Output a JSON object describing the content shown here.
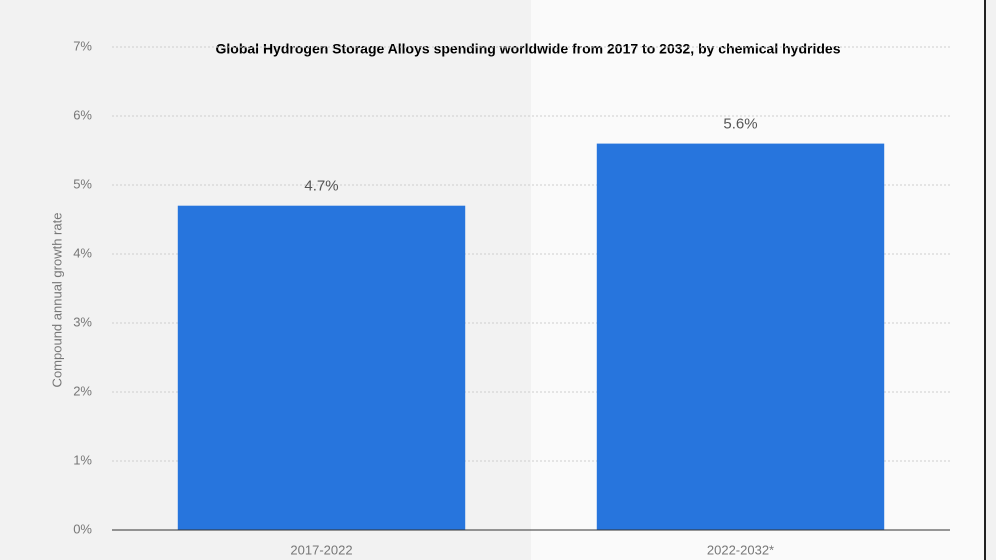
{
  "chart_data": {
    "type": "bar",
    "title": "Global Hydrogen Storage Alloys spending worldwide from 2017 to 2032, by chemical hydrides",
    "y_label": "Compound annual growth rate",
    "categories": [
      "2017-2022",
      "2022-2032*"
    ],
    "values": [
      4.7,
      5.6
    ],
    "value_labels": [
      "4.7%",
      "5.6%"
    ],
    "color": "#2775dd",
    "ylim": [
      0,
      7
    ],
    "yticks": [
      {
        "value": 0,
        "label": "0%"
      },
      {
        "value": 1,
        "label": "1%"
      },
      {
        "value": 2,
        "label": "2%"
      },
      {
        "value": 3,
        "label": "3%"
      },
      {
        "value": 4,
        "label": "4%"
      },
      {
        "value": 5,
        "label": "5%"
      },
      {
        "value": 6,
        "label": "6%"
      },
      {
        "value": 7,
        "label": "7%"
      }
    ],
    "grid": true
  }
}
